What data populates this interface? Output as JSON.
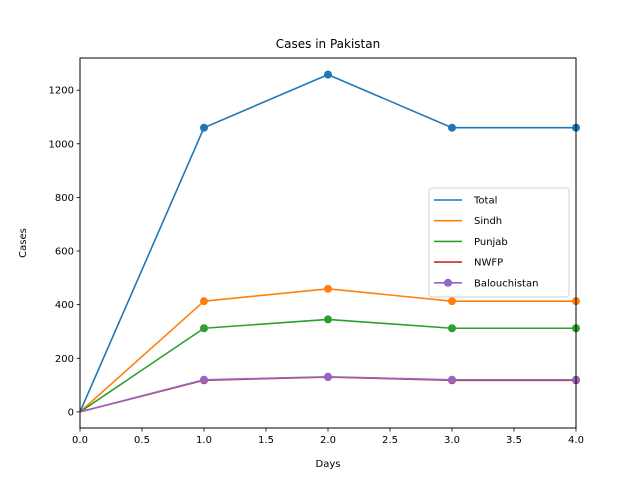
{
  "chart_data": {
    "type": "line",
    "title": "Cases in Pakistan",
    "xlabel": "Days",
    "ylabel": "Cases",
    "xlim": [
      0,
      4
    ],
    "ylim": [
      -60,
      1320
    ],
    "x": [
      0,
      1,
      2,
      3,
      4
    ],
    "xticks": [
      "0.0",
      "0.5",
      "1.0",
      "1.5",
      "2.0",
      "2.5",
      "3.0",
      "3.5",
      "4.0"
    ],
    "yticks": [
      "0",
      "200",
      "400",
      "600",
      "800",
      "1000",
      "1200"
    ],
    "grid": false,
    "legend_position": "center-right",
    "series": [
      {
        "name": "Total",
        "values": [
          0,
          1060,
          1258,
          1060,
          1060
        ],
        "color": "#1f77b4"
      },
      {
        "name": "Sindh",
        "values": [
          0,
          413,
          459,
          413,
          413
        ],
        "color": "#ff7f0e"
      },
      {
        "name": "Punjab",
        "values": [
          0,
          312,
          345,
          312,
          312
        ],
        "color": "#2ca02c"
      },
      {
        "name": "NWFP",
        "values": [
          0,
          118,
          130,
          118,
          118
        ],
        "color": "#d62728"
      },
      {
        "name": "Balouchistan",
        "values": [
          0,
          120,
          131,
          120,
          120
        ],
        "color": "#9467bd"
      }
    ]
  }
}
